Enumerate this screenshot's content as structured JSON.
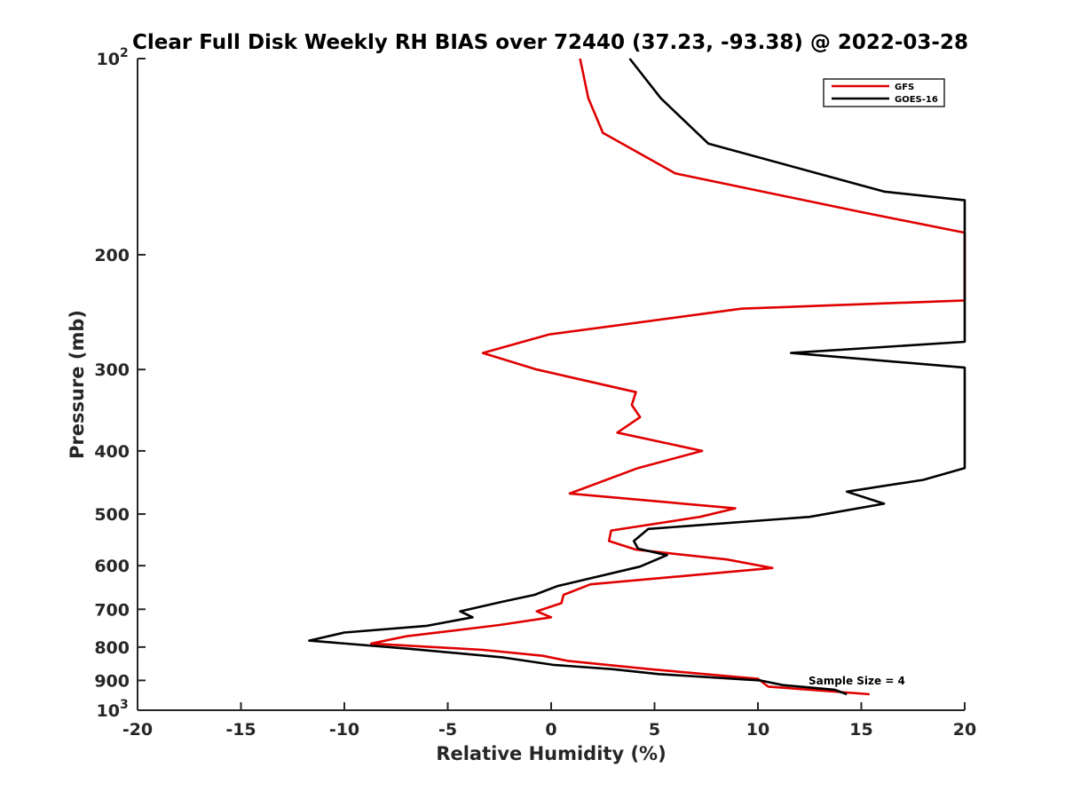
{
  "chart_data": {
    "type": "line",
    "title": "Clear Full Disk Weekly RH BIAS over 72440 (37.23, -93.38) @ 2022-03-28",
    "xlabel": "Relative Humidity (%)",
    "ylabel": "Pressure (mb)",
    "xlim": [
      -20,
      20
    ],
    "ylim": [
      100,
      1000
    ],
    "y_scale": "log",
    "y_reversed": true,
    "grid": false,
    "legend_position": "top-right",
    "x_ticks": [
      "-20",
      "-15",
      "-10",
      "-5",
      "0",
      "5",
      "10",
      "15",
      "20"
    ],
    "y_ticks": [
      {
        "value": 100,
        "label": "10",
        "sup": "2"
      },
      {
        "value": 200,
        "label": "200",
        "sup": ""
      },
      {
        "value": 300,
        "label": "300",
        "sup": ""
      },
      {
        "value": 400,
        "label": "400",
        "sup": ""
      },
      {
        "value": 500,
        "label": "500",
        "sup": ""
      },
      {
        "value": 600,
        "label": "600",
        "sup": ""
      },
      {
        "value": 700,
        "label": "700",
        "sup": ""
      },
      {
        "value": 800,
        "label": "800",
        "sup": ""
      },
      {
        "value": 900,
        "label": "900",
        "sup": ""
      },
      {
        "value": 1000,
        "label": "10",
        "sup": "3"
      }
    ],
    "annotation": "Sample Size = 4",
    "series": [
      {
        "name": "GFS",
        "color": "#e00000",
        "points": [
          [
            1.4,
            100
          ],
          [
            1.8,
            115
          ],
          [
            2.5,
            130
          ],
          [
            6.0,
            150
          ],
          [
            15.0,
            172
          ],
          [
            20.0,
            185
          ],
          [
            20.0,
            235
          ],
          [
            9.2,
            242
          ],
          [
            -0.1,
            265
          ],
          [
            -3.3,
            283
          ],
          [
            -0.7,
            300
          ],
          [
            4.1,
            325
          ],
          [
            3.9,
            340
          ],
          [
            4.3,
            355
          ],
          [
            3.2,
            375
          ],
          [
            7.3,
            400
          ],
          [
            4.2,
            425
          ],
          [
            0.9,
            465
          ],
          [
            8.9,
            490
          ],
          [
            7.2,
            505
          ],
          [
            2.9,
            530
          ],
          [
            2.8,
            550
          ],
          [
            4.1,
            567
          ],
          [
            8.5,
            587
          ],
          [
            10.7,
            605
          ],
          [
            1.9,
            641
          ],
          [
            0.6,
            665
          ],
          [
            0.5,
            685
          ],
          [
            -0.7,
            705
          ],
          [
            0.0,
            720
          ],
          [
            -2.5,
            740
          ],
          [
            -7.0,
            770
          ],
          [
            -8.7,
            790
          ],
          [
            -3.3,
            808
          ],
          [
            -0.4,
            825
          ],
          [
            0.8,
            840
          ],
          [
            4.8,
            865
          ],
          [
            10.0,
            895
          ],
          [
            10.5,
            920
          ],
          [
            15.4,
            945
          ]
        ]
      },
      {
        "name": "GOES-16",
        "color": "#000000",
        "points": [
          [
            3.8,
            100
          ],
          [
            5.3,
            115
          ],
          [
            7.6,
            135
          ],
          [
            16.1,
            160
          ],
          [
            20.0,
            165
          ],
          [
            20.0,
            272
          ],
          [
            11.6,
            283
          ],
          [
            20.0,
            298
          ],
          [
            20.0,
            425
          ],
          [
            18.0,
            443
          ],
          [
            14.3,
            462
          ],
          [
            16.1,
            482
          ],
          [
            12.5,
            505
          ],
          [
            4.7,
            527
          ],
          [
            4.0,
            550
          ],
          [
            4.2,
            565
          ],
          [
            5.6,
            578
          ],
          [
            4.3,
            602
          ],
          [
            0.3,
            645
          ],
          [
            -0.8,
            665
          ],
          [
            -2.4,
            682
          ],
          [
            -4.4,
            705
          ],
          [
            -3.8,
            720
          ],
          [
            -6.0,
            742
          ],
          [
            -10.0,
            760
          ],
          [
            -11.7,
            782
          ],
          [
            -6.8,
            805
          ],
          [
            -2.3,
            830
          ],
          [
            0.1,
            852
          ],
          [
            3.0,
            865
          ],
          [
            5.2,
            880
          ],
          [
            10.1,
            900
          ],
          [
            11.2,
            915
          ],
          [
            13.7,
            930
          ],
          [
            14.3,
            945
          ]
        ]
      }
    ]
  }
}
